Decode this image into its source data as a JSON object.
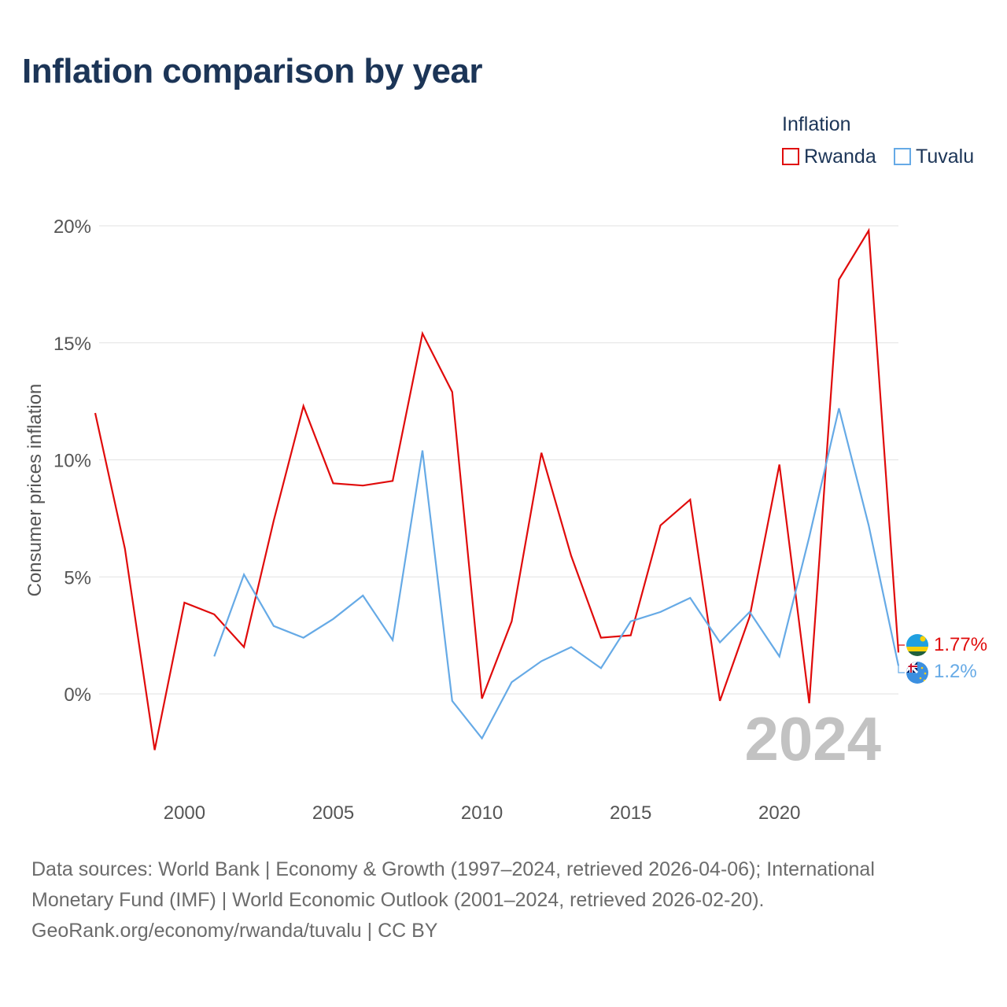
{
  "title": "Inflation comparison by year",
  "legend": {
    "title": "Inflation",
    "items": [
      {
        "label": "Rwanda",
        "color": "#e00b0b"
      },
      {
        "label": "Tuvalu",
        "color": "#66aae6"
      }
    ]
  },
  "chart_data": {
    "type": "line",
    "title": "Inflation comparison by year",
    "xlabel": "",
    "ylabel": "Consumer prices inflation",
    "xlim": [
      1997,
      2024
    ],
    "ylim": [
      -3.5,
      20.5
    ],
    "x_ticks": [
      2000,
      2005,
      2010,
      2015,
      2020
    ],
    "y_ticks": [
      {
        "value": 20,
        "label": "20%"
      },
      {
        "value": 15,
        "label": "15%"
      },
      {
        "value": 10,
        "label": "10%"
      },
      {
        "value": 5,
        "label": "5%"
      },
      {
        "value": 0,
        "label": "0%"
      }
    ],
    "year_watermark": "2024",
    "series": [
      {
        "name": "Rwanda",
        "color": "#e00b0b",
        "end_label": "1.77%",
        "x": [
          1997,
          1998,
          1999,
          2000,
          2001,
          2002,
          2003,
          2004,
          2005,
          2006,
          2007,
          2008,
          2009,
          2010,
          2011,
          2012,
          2013,
          2014,
          2015,
          2016,
          2017,
          2018,
          2019,
          2020,
          2021,
          2022,
          2023,
          2024
        ],
        "values": [
          12.0,
          6.2,
          -2.4,
          3.9,
          3.4,
          2.0,
          7.4,
          12.3,
          9.0,
          8.9,
          9.1,
          15.4,
          12.9,
          -0.2,
          3.1,
          10.3,
          5.9,
          2.4,
          2.5,
          7.2,
          8.3,
          -0.3,
          3.3,
          9.8,
          -0.4,
          17.7,
          19.8,
          1.77
        ]
      },
      {
        "name": "Tuvalu",
        "color": "#66aae6",
        "end_label": "1.2%",
        "x": [
          2001,
          2002,
          2003,
          2004,
          2005,
          2006,
          2007,
          2008,
          2009,
          2010,
          2011,
          2012,
          2013,
          2014,
          2015,
          2016,
          2017,
          2018,
          2019,
          2020,
          2021,
          2022,
          2023,
          2024
        ],
        "values": [
          1.6,
          5.1,
          2.9,
          2.4,
          3.2,
          4.2,
          2.3,
          10.4,
          -0.3,
          -1.9,
          0.5,
          1.4,
          2.0,
          1.1,
          3.1,
          3.5,
          4.1,
          2.2,
          3.5,
          1.6,
          6.7,
          12.2,
          7.2,
          1.2
        ]
      }
    ]
  },
  "footer": {
    "line1": "Data sources: World Bank | Economy & Growth (1997–2024, retrieved 2026-04-06); International",
    "line2": "Monetary Fund (IMF) | World Economic Outlook (2001–2024, retrieved 2026-02-20).",
    "line3": "GeoRank.org/economy/rwanda/tuvalu | CC BY"
  }
}
